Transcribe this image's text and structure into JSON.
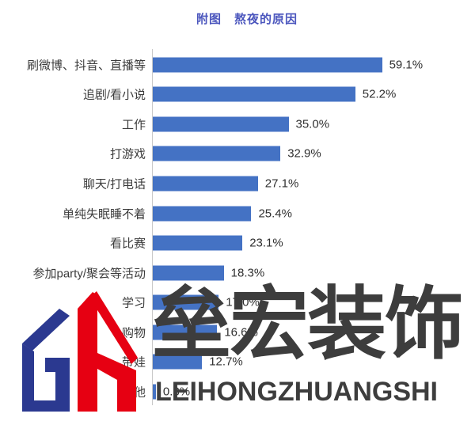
{
  "chart_data": {
    "type": "bar",
    "orientation": "horizontal",
    "title": "附图　熬夜的原因",
    "categories": [
      "刷微博、抖音、直播等",
      "追剧/看小说",
      "工作",
      "打游戏",
      "聊天/打电话",
      "单纯失眠睡不着",
      "看比赛",
      "参加party/聚会等活动",
      "学习",
      "购物",
      "带娃",
      "其他"
    ],
    "values": [
      59.1,
      52.2,
      35.0,
      32.9,
      27.1,
      25.4,
      23.1,
      18.3,
      17.0,
      16.6,
      12.7,
      0.8
    ],
    "value_labels": [
      "59.1%",
      "52.2%",
      "35.0%",
      "32.9%",
      "27.1%",
      "25.4%",
      "23.1%",
      "18.3%",
      "17.0%",
      "16.6%",
      "12.7%",
      "0.8%"
    ],
    "xlim": [
      0,
      65
    ],
    "grid": false,
    "legend": "none",
    "bar_color": "#4472c4",
    "title_color": "#4a55bd",
    "label_color": "#3c3c3c",
    "axis_color": "#c9c9c9"
  },
  "watermark": {
    "cn_text": "垒宏装饰",
    "latin_text": "LEIHONGZHUANGSHI",
    "text_color": "#3d3d3d",
    "logo_navy": "#2b3990",
    "logo_red": "#e60012"
  }
}
